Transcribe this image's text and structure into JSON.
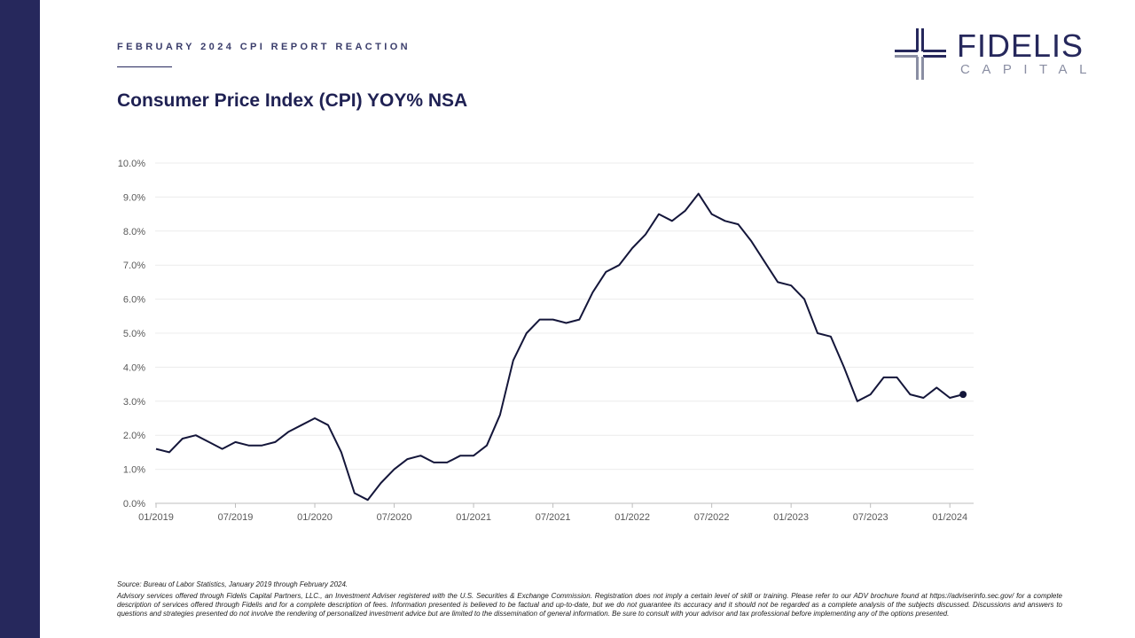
{
  "header": {
    "kicker": "FEBRUARY 2024 CPI REPORT REACTION",
    "title": "Consumer Price Index (CPI) YOY% NSA"
  },
  "logo": {
    "name": "FIDELIS",
    "subtitle": "CAPITAL",
    "icon": "cross-compass-logo-icon"
  },
  "colors": {
    "sidebar": "#26285c",
    "line": "#14163a",
    "title": "#1f2153",
    "logo_gray": "#8a8ea3"
  },
  "chart_data": {
    "type": "line",
    "title": "",
    "xlabel": "",
    "ylabel": "",
    "ylim": [
      0,
      10
    ],
    "yticks": [
      "0.0%",
      "1.0%",
      "2.0%",
      "3.0%",
      "4.0%",
      "5.0%",
      "6.0%",
      "7.0%",
      "8.0%",
      "9.0%",
      "10.0%"
    ],
    "xticks": [
      "01/2019",
      "07/2019",
      "01/2020",
      "07/2020",
      "01/2021",
      "07/2021",
      "01/2022",
      "07/2022",
      "01/2023",
      "07/2023",
      "01/2024"
    ],
    "grid": true,
    "legend": "none",
    "end_marker": true,
    "series": [
      {
        "x_start": "01/2019",
        "x_end": "02/2024",
        "values": [
          1.6,
          1.5,
          1.9,
          2.0,
          1.8,
          1.6,
          1.8,
          1.7,
          1.7,
          1.8,
          2.1,
          2.3,
          2.5,
          2.3,
          1.5,
          0.3,
          0.1,
          0.6,
          1.0,
          1.3,
          1.4,
          1.2,
          1.2,
          1.4,
          1.4,
          1.7,
          2.6,
          4.2,
          5.0,
          5.4,
          5.4,
          5.3,
          5.4,
          6.2,
          6.8,
          7.0,
          7.5,
          7.9,
          8.5,
          8.3,
          8.6,
          9.1,
          8.5,
          8.3,
          8.2,
          7.7,
          7.1,
          6.5,
          6.4,
          6.0,
          5.0,
          4.9,
          4.0,
          3.0,
          3.2,
          3.7,
          3.7,
          3.2,
          3.1,
          3.4,
          3.1,
          3.2
        ]
      }
    ]
  },
  "footer": {
    "source": "Source: Bureau of Labor Statistics, January 2019 through February 2024.",
    "disclaimer": "Advisory services offered through Fidelis Capital Partners, LLC., an Investment Adviser registered with the U.S. Securities & Exchange Commission. Registration does not imply a certain level of skill or training. Please refer to our ADV brochure found at https://adviserinfo.sec.gov/ for a complete description of services offered through Fidelis and for a complete description of fees. Information presented is believed to be factual and up-to-date, but we do not guarantee its accuracy and it should not be regarded as a complete analysis of the subjects discussed. Discussions and answers to questions and strategies presented do not involve the rendering of personalized investment advice but are limited to the dissemination of general information. Be sure to consult with your advisor and tax professional before implementing any of the options presented."
  }
}
